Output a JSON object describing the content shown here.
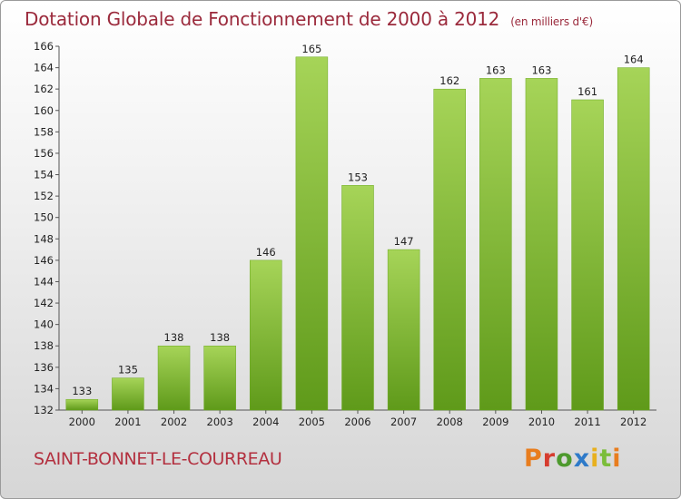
{
  "chart_data": {
    "type": "bar",
    "title": "Dotation Globale de Fonctionnement de 2000 à 2012",
    "subtitle": "(en milliers d'€)",
    "categories": [
      "2000",
      "2001",
      "2002",
      "2003",
      "2004",
      "2005",
      "2006",
      "2007",
      "2008",
      "2009",
      "2010",
      "2011",
      "2012"
    ],
    "values": [
      133,
      135,
      138,
      138,
      146,
      165,
      153,
      147,
      162,
      163,
      163,
      161,
      164
    ],
    "ylim": [
      132,
      166
    ],
    "yticks": [
      132,
      134,
      136,
      138,
      140,
      142,
      144,
      146,
      148,
      150,
      152,
      154,
      156,
      158,
      160,
      162,
      164,
      166
    ],
    "grid": false,
    "bar_color": "#7fbf2f",
    "bar_color_light": "#a6d458",
    "bar_color_dark": "#5f9a1a"
  },
  "footer": {
    "commune": "SAINT-BONNET-LE-COURREAU",
    "logo_letters": [
      "P",
      "r",
      "o",
      "x",
      "i",
      "t",
      "i"
    ]
  },
  "colors": {
    "title": "#9b2a3c",
    "commune": "#b3303f"
  }
}
